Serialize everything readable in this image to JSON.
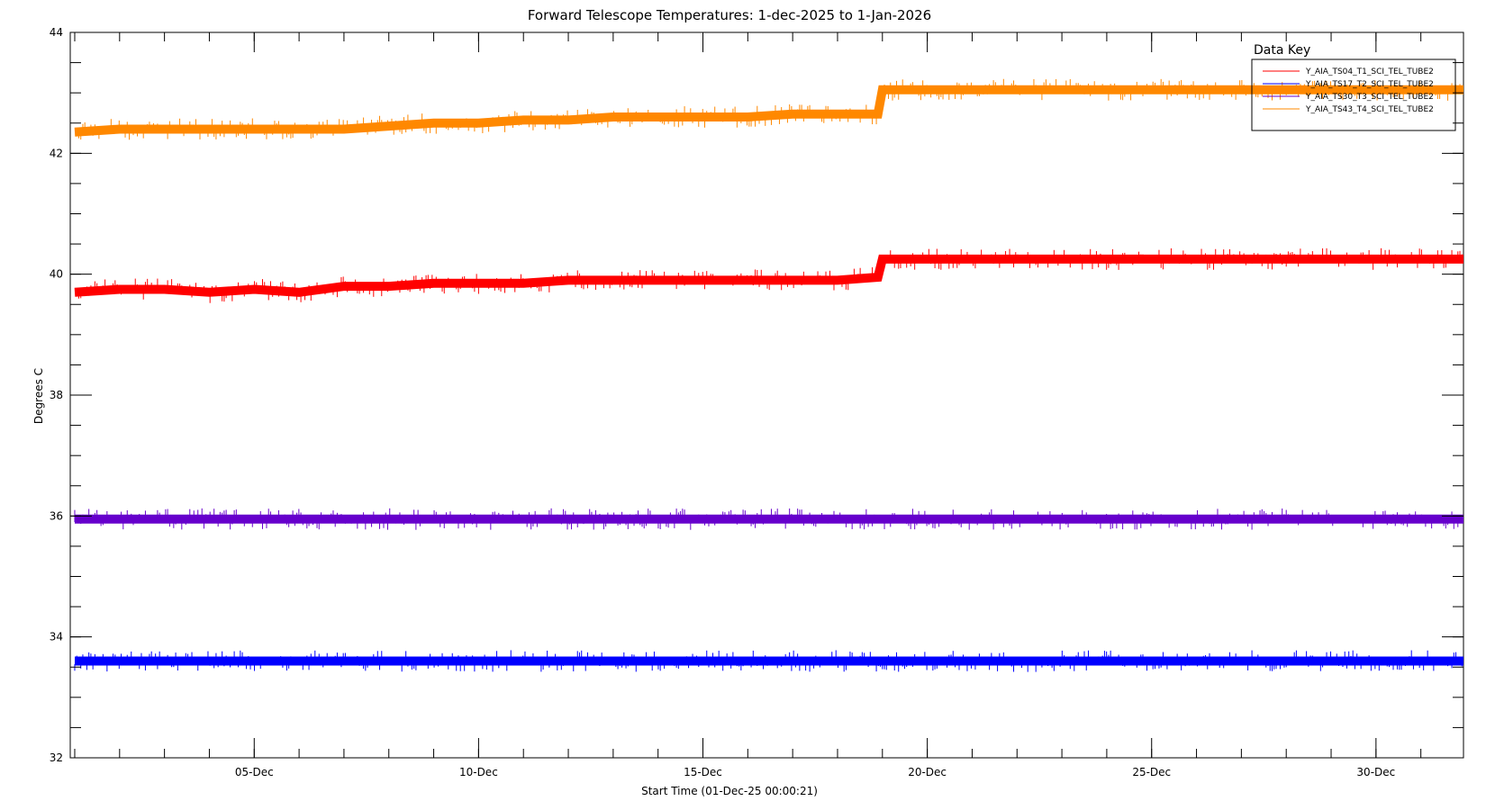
{
  "chart_data": {
    "type": "line",
    "title": "Forward Telescope Temperatures: 1-dec-2025 to 1-Jan-2026",
    "xlabel": "Start Time (01-Dec-25 00:00:21)",
    "ylabel": "Degrees C",
    "xlim": [
      0.9,
      31.95
    ],
    "ylim": [
      32,
      44
    ],
    "yticks": [
      32,
      34,
      36,
      38,
      40,
      42,
      44
    ],
    "y_minor_step": 0.5,
    "xticks": [
      {
        "day": 5,
        "label": "05-Dec"
      },
      {
        "day": 10,
        "label": "10-Dec"
      },
      {
        "day": 15,
        "label": "15-Dec"
      },
      {
        "day": 20,
        "label": "20-Dec"
      },
      {
        "day": 25,
        "label": "25-Dec"
      },
      {
        "day": 30,
        "label": "30-Dec"
      }
    ],
    "x_minor_step": 1,
    "grid": false,
    "legend": {
      "title": "Data Key",
      "position": "top-right"
    },
    "series": [
      {
        "name": "Y_AIA_TS04_T1_SCI_TEL_TUBE2",
        "color": "#ff0000",
        "x": [
          1,
          2,
          3,
          4,
          5,
          6,
          7,
          8,
          9,
          10,
          11,
          12,
          13,
          14,
          15,
          16,
          17,
          18,
          18.9,
          19,
          20,
          22,
          24,
          26,
          28,
          30,
          32
        ],
        "y": [
          39.7,
          39.75,
          39.75,
          39.7,
          39.75,
          39.7,
          39.8,
          39.8,
          39.85,
          39.85,
          39.85,
          39.9,
          39.9,
          39.9,
          39.9,
          39.9,
          39.9,
          39.9,
          39.95,
          40.25,
          40.25,
          40.25,
          40.25,
          40.25,
          40.25,
          40.25,
          40.25
        ]
      },
      {
        "name": "Y_AIA_TS17_T2_SCI_TEL_TUBE2",
        "color": "#0000ff",
        "x": [
          1,
          4,
          8,
          12,
          16,
          20,
          24,
          28,
          32
        ],
        "y": [
          33.6,
          33.6,
          33.6,
          33.6,
          33.6,
          33.6,
          33.6,
          33.6,
          33.6
        ]
      },
      {
        "name": "Y_AIA_TS30_T3_SCI_TEL_TUBE2",
        "color": "#6600cc",
        "x": [
          1,
          4,
          8,
          12,
          16,
          20,
          24,
          28,
          32
        ],
        "y": [
          35.95,
          35.95,
          35.95,
          35.95,
          35.95,
          35.95,
          35.95,
          35.95,
          35.95
        ]
      },
      {
        "name": "Y_AIA_TS43_T4_SCI_TEL_TUBE2",
        "color": "#ff8800",
        "x": [
          1,
          2,
          3,
          4,
          5,
          6,
          7,
          8,
          9,
          10,
          11,
          12,
          13,
          14,
          15,
          16,
          17,
          18,
          18.9,
          19,
          20,
          22,
          24,
          26,
          28,
          30,
          32
        ],
        "y": [
          42.35,
          42.4,
          42.4,
          42.4,
          42.4,
          42.4,
          42.4,
          42.45,
          42.5,
          42.5,
          42.55,
          42.55,
          42.6,
          42.6,
          42.6,
          42.6,
          42.65,
          42.65,
          42.65,
          43.05,
          43.05,
          43.05,
          43.05,
          43.05,
          43.05,
          43.05,
          43.05
        ]
      }
    ]
  }
}
